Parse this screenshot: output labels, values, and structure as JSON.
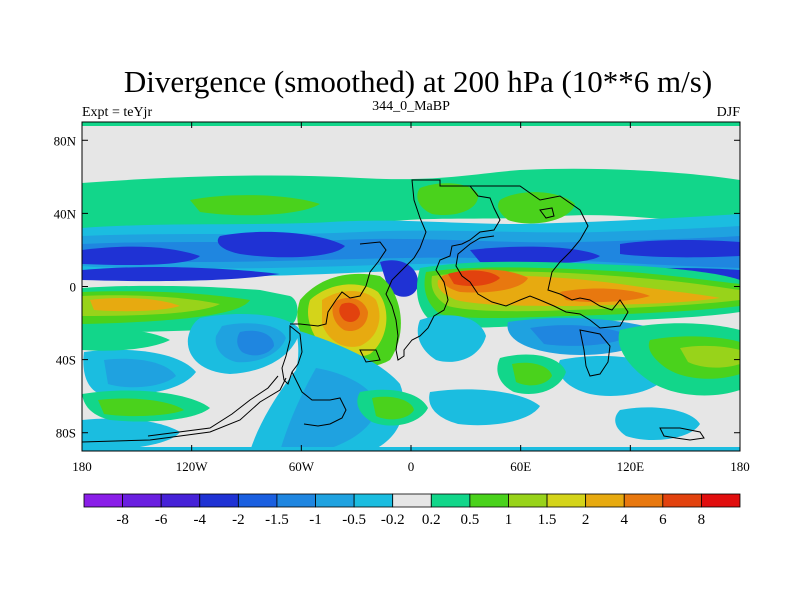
{
  "chart_data": {
    "type": "heatmap",
    "title": "Divergence (smoothed) at 200 hPa (10**6 m/s)",
    "subtitle_left": "Expt = teYjr",
    "subtitle_center": "344_0_MaBP",
    "subtitle_right": "DJF",
    "x_ticks": [
      "180",
      "120W",
      "60W",
      "0",
      "60E",
      "120E",
      "180"
    ],
    "x_tick_values": [
      -180,
      -120,
      -60,
      0,
      60,
      120,
      180
    ],
    "y_ticks": [
      "80N",
      "40N",
      "0",
      "40S",
      "80S"
    ],
    "y_tick_values": [
      80,
      40,
      0,
      -40,
      -80
    ],
    "xlim": [
      -180,
      180
    ],
    "ylim": [
      -90,
      90
    ],
    "colorbar": {
      "labels": [
        "-8",
        "-6",
        "-4",
        "-2",
        "-1.5",
        "-1",
        "-0.5",
        "-0.2",
        "0.2",
        "0.5",
        "1",
        "1.5",
        "2",
        "4",
        "6",
        "8"
      ],
      "colors": [
        "#8a1ee8",
        "#6a1fe0",
        "#4622d8",
        "#1f32d4",
        "#1a5fe0",
        "#1f86e0",
        "#1fa2e0",
        "#1bbde0",
        "#e6e6e6",
        "#12d68a",
        "#4ad21c",
        "#98d31a",
        "#d4d41a",
        "#e7aa10",
        "#e8780f",
        "#e2420e",
        "#e10e0e"
      ]
    }
  }
}
